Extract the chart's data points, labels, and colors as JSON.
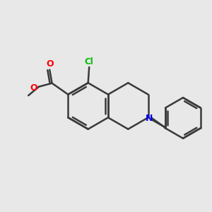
{
  "background_color": "#e8e8e8",
  "bond_color": "#3a3a3a",
  "bond_width": 1.8,
  "atom_colors": {
    "Cl": "#00bb00",
    "O": "#ff0000",
    "N": "#0000ee"
  },
  "figsize": [
    3.0,
    3.0
  ],
  "dpi": 100,
  "xlim": [
    0,
    10
  ],
  "ylim": [
    0,
    10
  ]
}
